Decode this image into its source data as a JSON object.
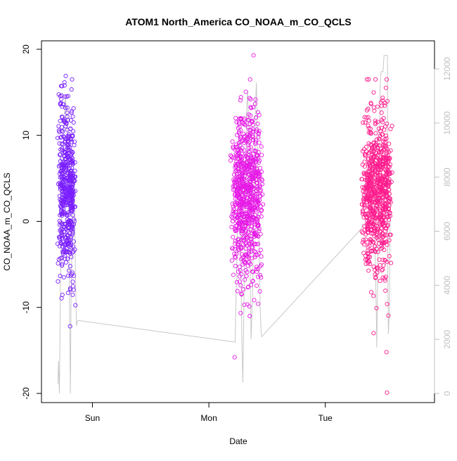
{
  "chart_data": {
    "type": "scatter",
    "title": "ATOM1 North_America CO_NOAA_m_CO_QCLS",
    "xlabel": "Date",
    "ylabel": "CO_NOAA_m_CO_QCLS",
    "x_ticks": [
      "Sun",
      "Mon",
      "Tue"
    ],
    "x_tick_hours": [
      24,
      48,
      72
    ],
    "x_range_hours": [
      13.5,
      94.5
    ],
    "ylim": [
      -20,
      20
    ],
    "y_ticks": [
      -20,
      -10,
      0,
      10,
      20
    ],
    "y2lim": [
      0,
      12000
    ],
    "y2_ticks": [
      0,
      2000,
      4000,
      6000,
      8000,
      10000,
      12000
    ],
    "grid": false,
    "marker": "open-circle",
    "secondary_line_color": "#c8c8c8",
    "clusters": [
      {
        "x_center_hours": 18.7,
        "x_spread_hours": 1.9,
        "y_mean": 3.5,
        "y_sd": 5.0,
        "count": 520,
        "color": "#7a1fff"
      },
      {
        "x_center_hours": 55.8,
        "x_spread_hours": 3.5,
        "y_mean": 3.0,
        "y_sd": 4.8,
        "count": 760,
        "color": "#e61ae6"
      },
      {
        "x_center_hours": 82.6,
        "x_spread_hours": 3.3,
        "y_mean": 3.2,
        "y_sd": 4.8,
        "count": 700,
        "color": "#ff1a8c"
      }
    ],
    "outliers": [
      {
        "x_hours": 57.2,
        "y": 19.3,
        "color": "#e61ae6"
      },
      {
        "x_hours": 53.3,
        "y": -15.8,
        "color": "#e61ae6"
      },
      {
        "x_hours": 84.7,
        "y": -19.9,
        "color": "#ff1a8c"
      },
      {
        "x_hours": 84.6,
        "y": -15.2,
        "color": "#ff1a8c"
      },
      {
        "x_hours": 18.5,
        "y": 16.9,
        "color": "#7a1fff"
      },
      {
        "x_hours": 19.4,
        "y": -12.2,
        "color": "#7a1fff"
      }
    ],
    "altitude_line": [
      [
        16.9,
        350
      ],
      [
        17.0,
        1200
      ],
      [
        17.2,
        0
      ],
      [
        17.4,
        3800
      ],
      [
        17.7,
        6600
      ],
      [
        18.0,
        9200
      ],
      [
        18.4,
        11000
      ],
      [
        18.8,
        10200
      ],
      [
        19.1,
        6500
      ],
      [
        19.3,
        3000
      ],
      [
        19.45,
        0
      ],
      [
        19.6,
        3500
      ],
      [
        19.9,
        6800
      ],
      [
        20.2,
        8200
      ],
      [
        20.5,
        4500
      ],
      [
        20.7,
        2500
      ],
      [
        21.0,
        2700
      ],
      [
        53.4,
        1900
      ],
      [
        53.6,
        3500
      ],
      [
        53.9,
        6000
      ],
      [
        54.2,
        9000
      ],
      [
        54.4,
        9500
      ],
      [
        54.6,
        5000
      ],
      [
        54.8,
        2000
      ],
      [
        55.0,
        400
      ],
      [
        55.2,
        3000
      ],
      [
        55.5,
        7500
      ],
      [
        55.8,
        10500
      ],
      [
        56.0,
        11200
      ],
      [
        56.3,
        9000
      ],
      [
        56.5,
        4500
      ],
      [
        56.7,
        2000
      ],
      [
        57.0,
        3500
      ],
      [
        57.3,
        7000
      ],
      [
        57.6,
        10600
      ],
      [
        57.8,
        11500
      ],
      [
        58.0,
        9500
      ],
      [
        58.3,
        6000
      ],
      [
        58.6,
        3000
      ],
      [
        58.8,
        2200
      ],
      [
        58.9,
        2100
      ],
      [
        81.0,
        6400
      ],
      [
        81.4,
        7500
      ],
      [
        81.8,
        9200
      ],
      [
        82.2,
        6000
      ],
      [
        82.5,
        3000
      ],
      [
        82.6,
        1700
      ],
      [
        82.8,
        4500
      ],
      [
        83.1,
        8500
      ],
      [
        83.3,
        11400
      ],
      [
        83.5,
        11900
      ],
      [
        83.9,
        11900
      ],
      [
        84.1,
        12500
      ],
      [
        84.8,
        12500
      ],
      [
        84.9,
        4000
      ],
      [
        85.0,
        2200
      ],
      [
        85.2,
        3000
      ],
      [
        85.4,
        8000
      ]
    ]
  }
}
